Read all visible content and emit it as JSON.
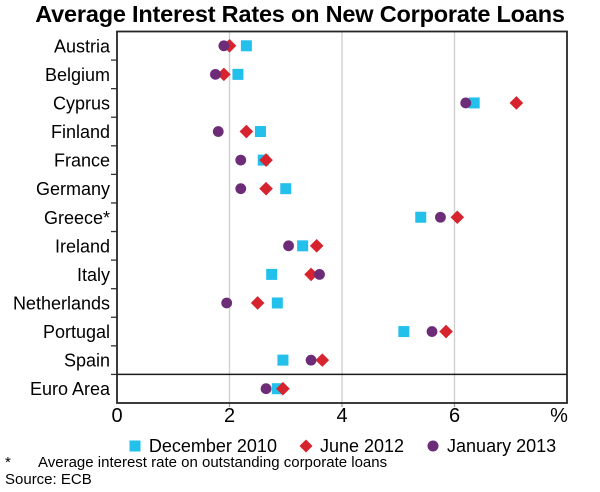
{
  "title": "Average Interest Rates on New Corporate Loans",
  "footnote": {
    "symbol": "*",
    "text": "Average interest rate on outstanding corporate loans"
  },
  "source_text": "Source: ECB",
  "chart_data": {
    "type": "scatter",
    "orientation": "horizontal",
    "title": "Average Interest Rates on New Corporate Loans",
    "xlabel": "%",
    "ylabel": "",
    "xlim": [
      0,
      8
    ],
    "xticks": [
      0,
      2,
      4,
      6
    ],
    "unit_tick_label": "%",
    "grid": "vertical",
    "grid_color": "#cfcfcf",
    "axis_color": "#262626",
    "tick_color": "#333333",
    "legend_position": "bottom",
    "separator_before_category": "Euro Area",
    "categories": [
      "Austria",
      "Belgium",
      "Cyprus",
      "Finland",
      "France",
      "Germany",
      "Greece*",
      "Ireland",
      "Italy",
      "Netherlands",
      "Portugal",
      "Spain",
      "Euro Area"
    ],
    "series": [
      {
        "name": "December 2010",
        "marker": "square",
        "color": "#22C0EA",
        "values": [
          2.3,
          2.15,
          6.35,
          2.55,
          2.6,
          3.0,
          5.4,
          3.3,
          2.75,
          2.85,
          5.1,
          2.95,
          2.85
        ]
      },
      {
        "name": "June 2012",
        "marker": "diamond",
        "color": "#D6232E",
        "values": [
          2.0,
          1.9,
          7.1,
          2.3,
          2.65,
          2.65,
          6.05,
          3.55,
          3.45,
          2.5,
          5.85,
          3.65,
          2.95
        ]
      },
      {
        "name": "January 2013",
        "marker": "circle",
        "color": "#6C2C77",
        "values": [
          1.9,
          1.75,
          6.2,
          1.8,
          2.2,
          2.2,
          5.75,
          3.05,
          3.6,
          1.95,
          5.6,
          3.45,
          2.65
        ]
      }
    ]
  }
}
